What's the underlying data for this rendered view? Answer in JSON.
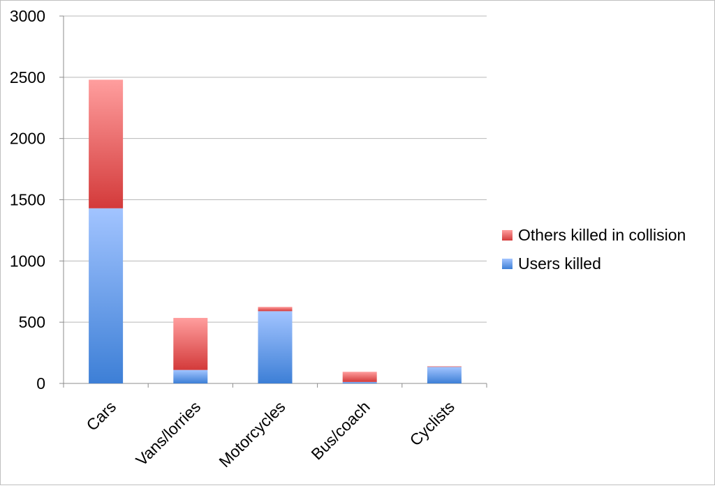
{
  "chart_data": {
    "type": "bar",
    "stacked": true,
    "categories": [
      "Cars",
      "Vans/lorries",
      "Motorcycles",
      "Bus/coach",
      "Cyclists"
    ],
    "series": [
      {
        "name": "Users killed",
        "values": [
          1430,
          110,
          590,
          12,
          135
        ],
        "color_top": "#a2c4ff",
        "color_bottom": "#3d7fd6"
      },
      {
        "name": "Others killed in collision",
        "values": [
          1050,
          425,
          35,
          83,
          5
        ],
        "color_top": "#ff9e9e",
        "color_bottom": "#d33a3a"
      }
    ],
    "ylim": [
      0,
      3000
    ],
    "yticks": [
      "0",
      "500",
      "1000",
      "1500",
      "2000",
      "2500",
      "3000"
    ],
    "grid": true,
    "legend_position": "right",
    "title": "",
    "xlabel": "",
    "ylabel": ""
  },
  "legend": [
    {
      "label": "Others killed in collision",
      "color": "#e05b5b"
    },
    {
      "label": "Users killed",
      "color": "#5b96e8"
    }
  ]
}
